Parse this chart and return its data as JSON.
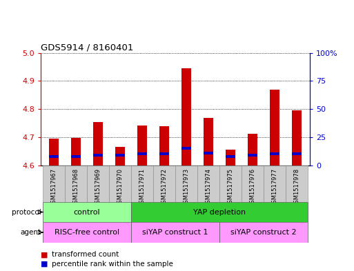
{
  "title": "GDS5914 / 8160401",
  "samples": [
    "GSM1517967",
    "GSM1517968",
    "GSM1517969",
    "GSM1517970",
    "GSM1517971",
    "GSM1517972",
    "GSM1517973",
    "GSM1517974",
    "GSM1517975",
    "GSM1517976",
    "GSM1517977",
    "GSM1517978"
  ],
  "transformed_counts": [
    4.695,
    4.698,
    4.755,
    4.665,
    4.742,
    4.74,
    4.945,
    4.768,
    4.655,
    4.713,
    4.87,
    4.795
  ],
  "percentile_ranks": [
    8,
    8,
    9,
    9,
    10,
    10,
    15,
    11,
    8,
    9,
    10,
    10
  ],
  "ylim_left": [
    4.6,
    5.0
  ],
  "ylim_right": [
    0,
    100
  ],
  "yticks_left": [
    4.6,
    4.7,
    4.8,
    4.9,
    5.0
  ],
  "yticks_right": [
    0,
    25,
    50,
    75,
    100
  ],
  "ytick_labels_right": [
    "0",
    "25",
    "50",
    "75",
    "100%"
  ],
  "bar_bottom": 4.6,
  "red_color": "#CC0000",
  "blue_color": "#0000CC",
  "protocol_groups": [
    {
      "label": "control",
      "start": 0,
      "end": 3,
      "color": "#99FF99"
    },
    {
      "label": "YAP depletion",
      "start": 4,
      "end": 11,
      "color": "#33CC33"
    }
  ],
  "agent_groups": [
    {
      "label": "RISC-free control",
      "start": 0,
      "end": 3,
      "color": "#FF99FF"
    },
    {
      "label": "siYAP construct 1",
      "start": 4,
      "end": 7,
      "color": "#FF99FF"
    },
    {
      "label": "siYAP construct 2",
      "start": 8,
      "end": 11,
      "color": "#FF99FF"
    }
  ],
  "legend_items": [
    {
      "label": "transformed count",
      "color": "#CC0000"
    },
    {
      "label": "percentile rank within the sample",
      "color": "#0000CC"
    }
  ],
  "bar_width": 0.45,
  "axis_color_left": "#CC0000",
  "axis_color_right": "#0000CC",
  "tick_label_area_color": "#CCCCCC"
}
